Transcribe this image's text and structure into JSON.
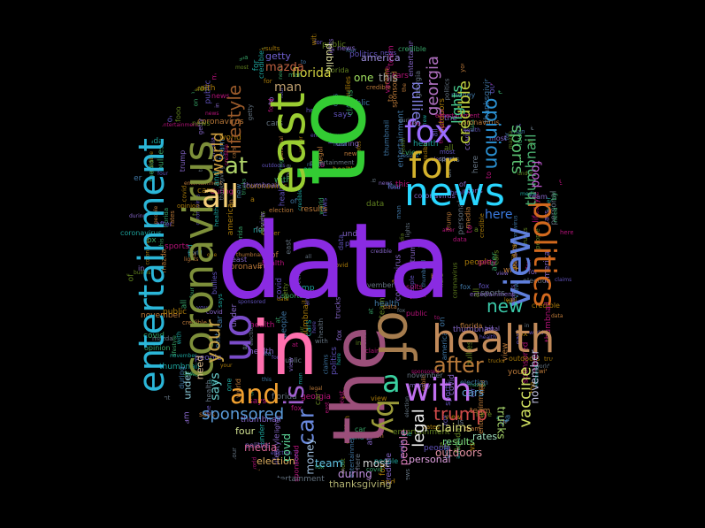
{
  "cloud": {
    "shape": "circle",
    "background": "#000000",
    "words": [
      {
        "text": "data",
        "color": "#8a2be2"
      },
      {
        "text": "to",
        "color": "#33cc33"
      },
      {
        "text": "the",
        "color": "#9b4f7a"
      },
      {
        "text": "east",
        "color": "#9acd32"
      },
      {
        "text": "in",
        "color": "#ff6fae"
      },
      {
        "text": "of",
        "color": "#a57c4e"
      },
      {
        "text": "news",
        "color": "#29d6ff"
      },
      {
        "text": "for",
        "color": "#d4b22c"
      },
      {
        "text": "fox",
        "color": "#9b6cff"
      },
      {
        "text": "health",
        "color": "#c18a5a"
      },
      {
        "text": "coronavirus",
        "color": "#7d8f3a"
      },
      {
        "text": "entertainment",
        "color": "#2bb6d8"
      },
      {
        "text": "politics",
        "color": "#d2691e"
      },
      {
        "text": "view",
        "color": "#5f7fdc"
      },
      {
        "text": "all",
        "color": "#f4cf7a"
      },
      {
        "text": "at",
        "color": "#b0d36a"
      },
      {
        "text": "on",
        "color": "#7a4cc9"
      },
      {
        "text": "and",
        "color": "#f0a030"
      },
      {
        "text": "is",
        "color": "#a060d0"
      },
      {
        "text": "with",
        "color": "#c070f0"
      },
      {
        "text": "a",
        "color": "#3ad0a0"
      },
      {
        "text": "by",
        "color": "#9a9a3a"
      },
      {
        "text": "opinion",
        "color": "#2a8fd0"
      },
      {
        "text": "lifestyle",
        "color": "#9a5a2a"
      },
      {
        "text": "your",
        "color": "#c6a24a"
      },
      {
        "text": "after",
        "color": "#b87a3a"
      },
      {
        "text": "new",
        "color": "#3ac8a8"
      },
      {
        "text": "sponsored",
        "color": "#5a9ad8"
      },
      {
        "text": "car",
        "color": "#6a8adf"
      },
      {
        "text": "trump",
        "color": "#d04a4a"
      },
      {
        "text": "vaccine",
        "color": "#d0e060"
      },
      {
        "text": "legal",
        "color": "#f0f0f0"
      },
      {
        "text": "world",
        "color": "#d0a040"
      },
      {
        "text": "sports",
        "color": "#5ac070"
      },
      {
        "text": "credible",
        "color": "#c0d040"
      },
      {
        "text": "georgia",
        "color": "#b070c0"
      },
      {
        "text": "here",
        "color": "#3a7ae0"
      },
      {
        "text": "thumbnail",
        "color": "#4ab070"
      },
      {
        "text": "food",
        "color": "#c05ad0"
      },
      {
        "text": "says",
        "color": "#6ad0d0"
      },
      {
        "text": "lights",
        "color": "#4ad090"
      },
      {
        "text": "bullies",
        "color": "#8080e0"
      },
      {
        "text": "man",
        "color": "#c0a070"
      },
      {
        "text": "florida",
        "color": "#d0d040"
      },
      {
        "text": "one",
        "color": "#a0e060"
      },
      {
        "text": "this",
        "color": "#a0a0a0"
      },
      {
        "text": "mazda",
        "color": "#c06040"
      },
      {
        "text": "getty",
        "color": "#7060d0"
      },
      {
        "text": "team",
        "color": "#60c0e0"
      },
      {
        "text": "claims",
        "color": "#e0e080"
      },
      {
        "text": "results",
        "color": "#80e080"
      },
      {
        "text": "most",
        "color": "#d0d0d0"
      },
      {
        "text": "people",
        "color": "#e080c0"
      },
      {
        "text": "during",
        "color": "#c090e0"
      },
      {
        "text": "thanksgiving",
        "color": "#b0b070"
      },
      {
        "text": "election",
        "color": "#e0b060"
      },
      {
        "text": "covid",
        "color": "#60e0a0"
      },
      {
        "text": "media",
        "color": "#d06090"
      },
      {
        "text": "cars",
        "color": "#60a0d0"
      },
      {
        "text": "trucks",
        "color": "#b0e070"
      },
      {
        "text": "outdoors",
        "color": "#e090a0"
      },
      {
        "text": "money",
        "color": "#a0c0e0"
      },
      {
        "text": "personal",
        "color": "#e0a0e0"
      },
      {
        "text": "rates",
        "color": "#a0e0c0"
      },
      {
        "text": "november",
        "color": "#c0c0e0"
      },
      {
        "text": "need",
        "color": "#e0c090"
      },
      {
        "text": "under",
        "color": "#90d0e0"
      },
      {
        "text": "four",
        "color": "#d0e090"
      },
      {
        "text": "public",
        "color": "#e0e0a0"
      },
      {
        "text": "america",
        "color": "#a090e0"
      }
    ]
  }
}
